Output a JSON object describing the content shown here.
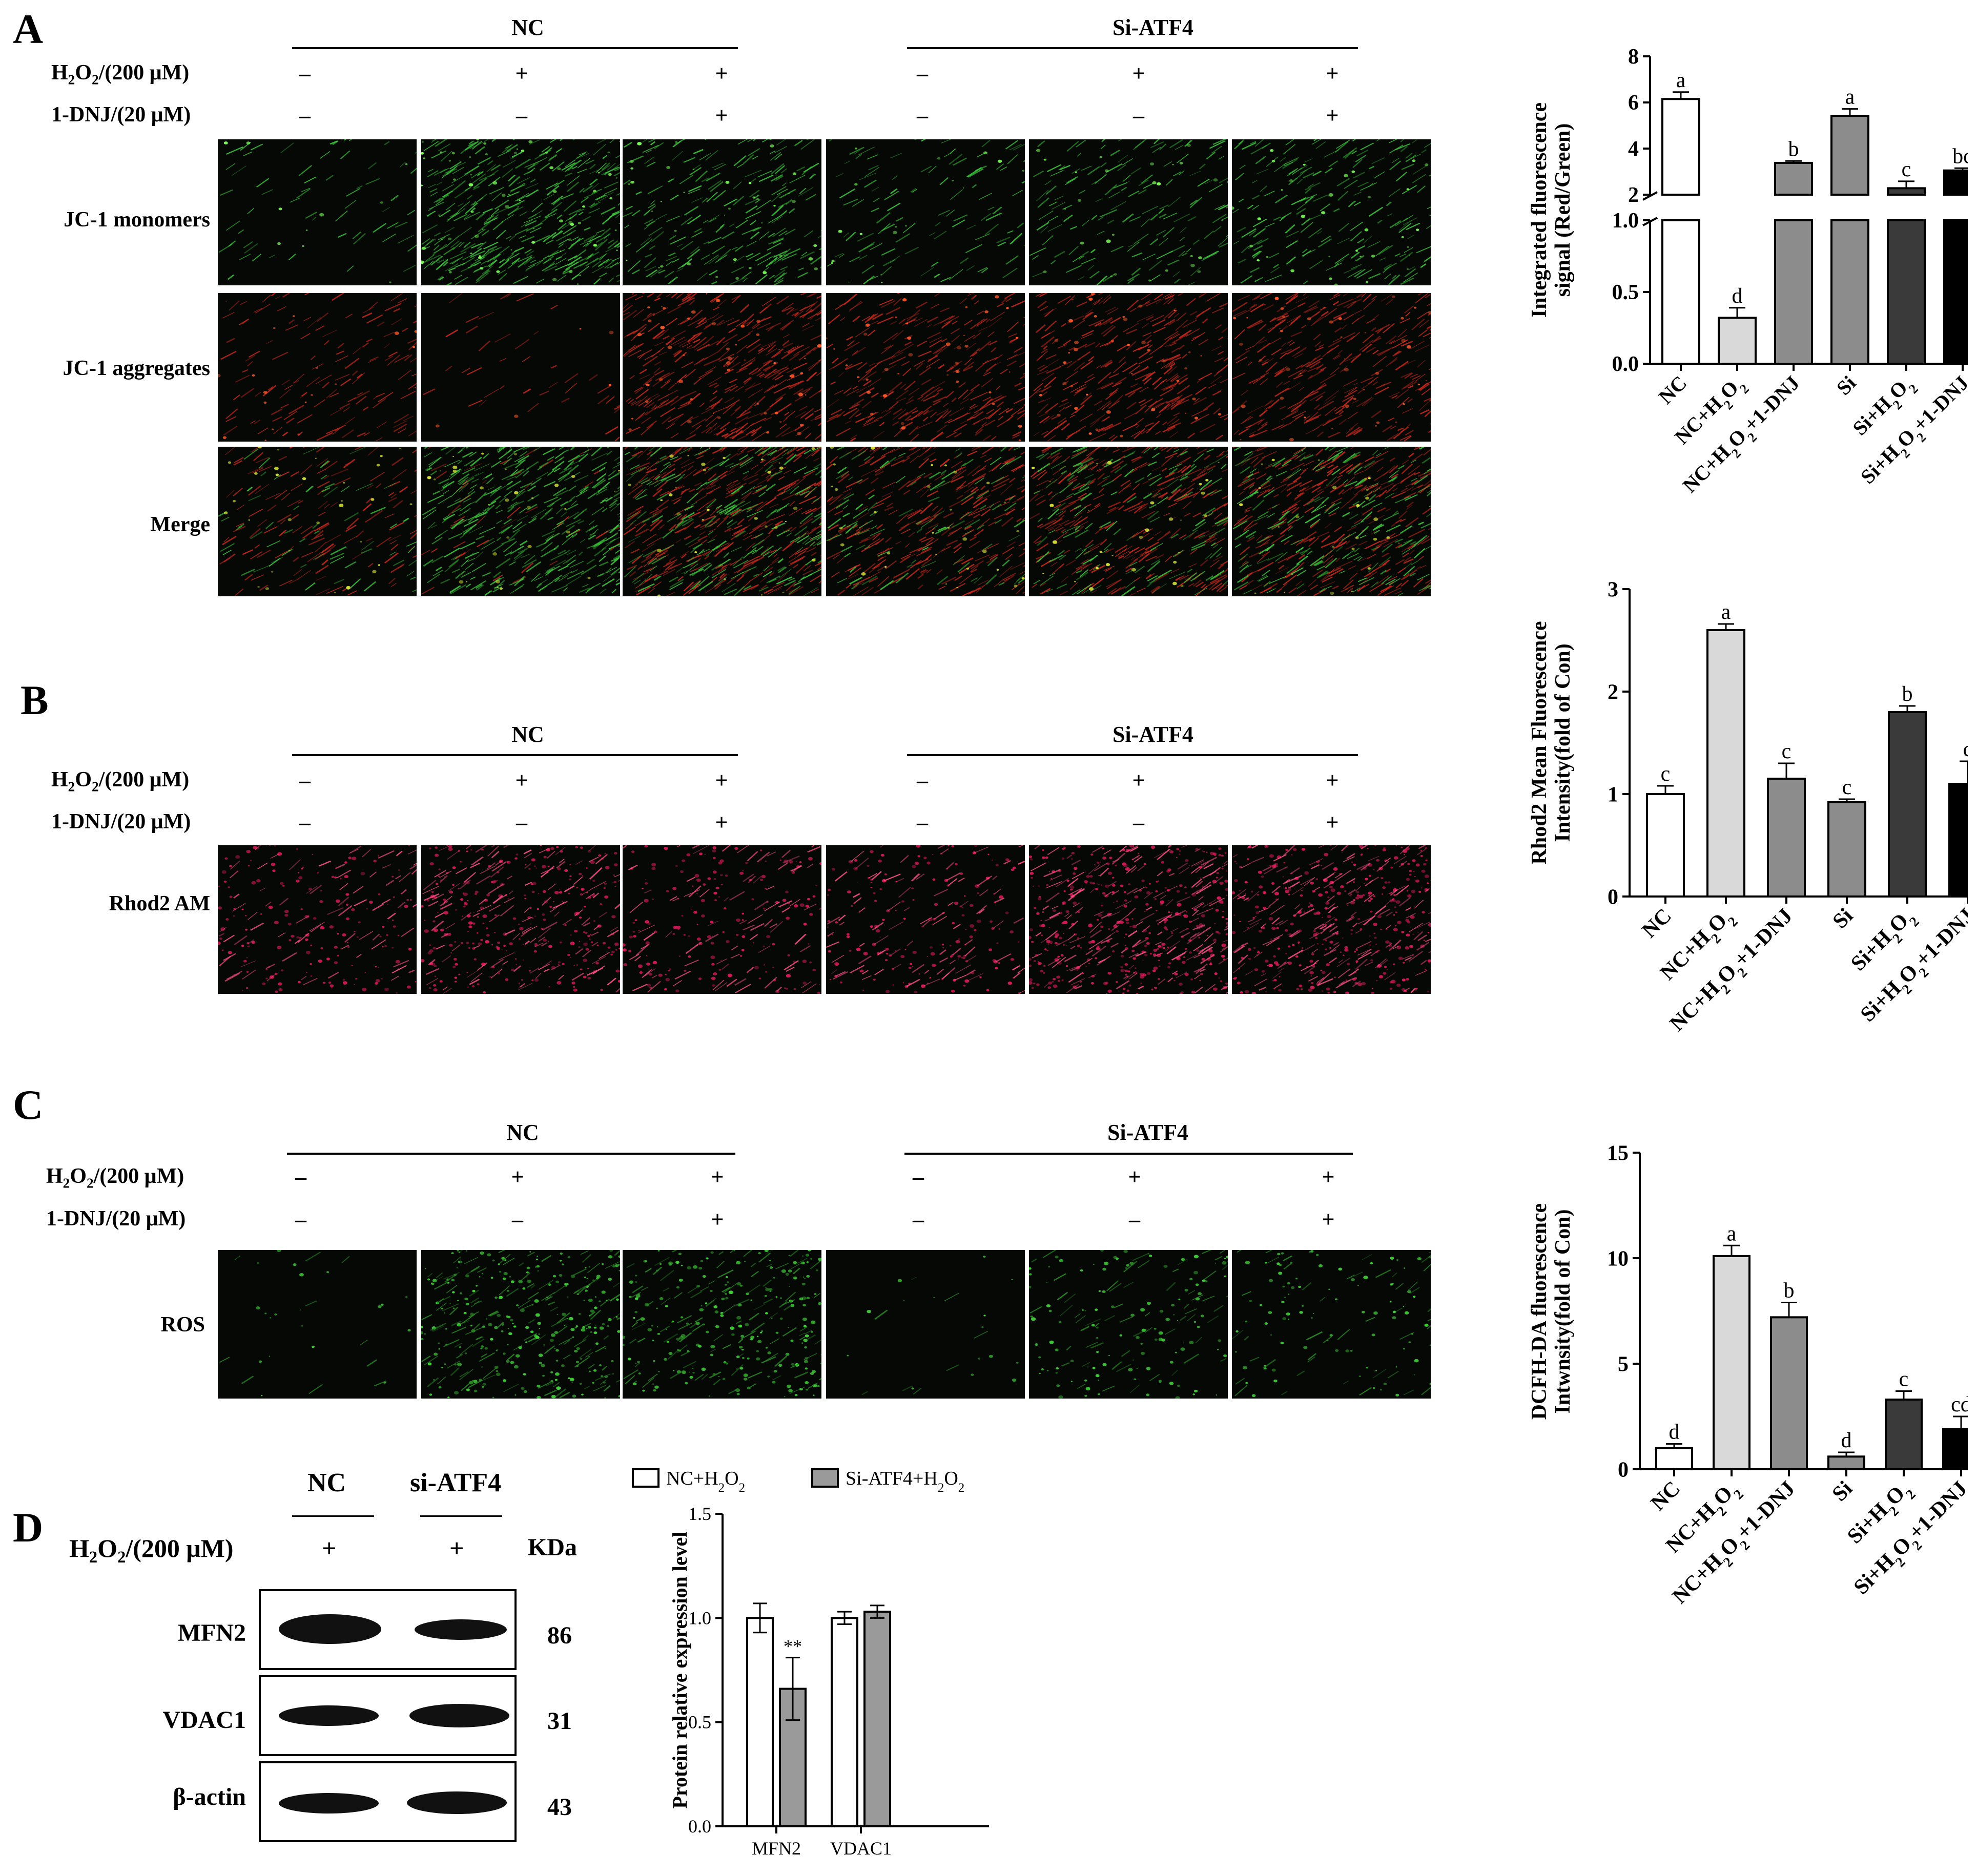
{
  "panels": {
    "A": {
      "letter": "A",
      "group_nc": "NC",
      "group_si": "Si-ATF4",
      "h2o2_label": "H2O2/(200 μM)",
      "dnj_label": "1-DNJ/(20 μM)",
      "h2o2_signs": [
        "–",
        "+",
        "+",
        "–",
        "+",
        "+"
      ],
      "dnj_signs": [
        "–",
        "–",
        "+",
        "–",
        "–",
        "+"
      ],
      "rows": [
        "JC-1 monomers",
        "JC-1 aggregates",
        "Merge"
      ]
    },
    "B": {
      "letter": "B",
      "group_nc": "NC",
      "group_si": "Si-ATF4",
      "h2o2_label": "H2O2/(200 μM)",
      "dnj_label": "1-DNJ/(20 μM)",
      "h2o2_signs": [
        "–",
        "+",
        "+",
        "–",
        "+",
        "+"
      ],
      "dnj_signs": [
        "–",
        "–",
        "+",
        "–",
        "–",
        "+"
      ],
      "rows": [
        "Rhod2 AM"
      ]
    },
    "C": {
      "letter": "C",
      "group_nc": "NC",
      "group_si": "Si-ATF4",
      "h2o2_label": "H2O2/(200 μM)",
      "dnj_label": "1-DNJ/(20 μM)",
      "h2o2_signs": [
        "–",
        "+",
        "+",
        "–",
        "+",
        "+"
      ],
      "dnj_signs": [
        "–",
        "–",
        "+",
        "–",
        "–",
        "+"
      ],
      "rows": [
        "ROS"
      ]
    },
    "D": {
      "letter": "D",
      "col_nc": "NC",
      "col_si": "si-ATF4",
      "h2o2_label": "H2O2/(200 μM)",
      "h2o2_signs": [
        "+",
        "+"
      ],
      "kda_header": "KDa",
      "bands": [
        {
          "name": "MFN2",
          "kda": "86"
        },
        {
          "name": "VDAC1",
          "kda": "31"
        },
        {
          "name": "β-actin",
          "kda": "43"
        }
      ]
    }
  },
  "colors": {
    "white_bar": "#ffffff",
    "light_gray": "#d9d9d9",
    "mid_gray": "#8c8c8c",
    "dark_gray": "#595959",
    "darker_gray": "#3a3a3a",
    "black_bar": "#000000"
  },
  "chart_data": [
    {
      "id": "A",
      "type": "bar",
      "ylabel": "Integrated fluorescence signal (Red/Green)",
      "categories": [
        "NC",
        "NC+H2O2",
        "NC+H2O2+1-DNJ",
        "Si",
        "Si+H2O2",
        "Si+H2O2+1-DNJ"
      ],
      "values": [
        6.15,
        0.32,
        3.38,
        5.42,
        2.28,
        3.05
      ],
      "errors": [
        0.3,
        0.07,
        0.08,
        0.3,
        0.3,
        0.1
      ],
      "letters": [
        "a",
        "d",
        "b",
        "a",
        "c",
        "bc"
      ],
      "axis_break": {
        "lower": [
          0,
          1.0
        ],
        "upper": [
          2,
          8
        ]
      },
      "lower_ticks": [
        "0.0",
        "0.5",
        "1.0"
      ],
      "upper_ticks": [
        "2",
        "4",
        "6",
        "8"
      ]
    },
    {
      "id": "B",
      "type": "bar",
      "ylabel": "Rhod2 Mean Fluorescence Intensity(fold of Con)",
      "categories": [
        "NC",
        "NC+H2O2",
        "NC+H2O2+1-DNJ",
        "Si",
        "Si+H2O2",
        "Si+H2O2+1-DNJ"
      ],
      "values": [
        1.0,
        2.6,
        1.15,
        0.92,
        1.8,
        1.1
      ],
      "errors": [
        0.08,
        0.06,
        0.15,
        0.03,
        0.06,
        0.22
      ],
      "letters": [
        "c",
        "a",
        "c",
        "c",
        "b",
        "c"
      ],
      "ylim": [
        0,
        3
      ],
      "ticks": [
        "0",
        "1",
        "2",
        "3"
      ]
    },
    {
      "id": "C",
      "type": "bar",
      "ylabel": "DCFH-DA fluorescence Intwnsity(fold of Con)",
      "categories": [
        "NC",
        "NC+H2O2",
        "NC+H2O2+1-DNJ",
        "Si",
        "Si+H2O2",
        "Si+H2O2+1-DNJ"
      ],
      "values": [
        1.0,
        10.1,
        7.2,
        0.6,
        3.3,
        1.9
      ],
      "errors": [
        0.2,
        0.5,
        0.7,
        0.2,
        0.4,
        0.6
      ],
      "letters": [
        "d",
        "a",
        "b",
        "d",
        "c",
        "cd"
      ],
      "ylim": [
        0,
        15
      ],
      "ticks": [
        "0",
        "5",
        "10",
        "15"
      ]
    },
    {
      "id": "D",
      "type": "bar",
      "ylabel": "Protein relative expression level",
      "categories": [
        "MFN2",
        "VDAC1"
      ],
      "series": [
        {
          "name": "NC+H2O2",
          "values": [
            1.0,
            1.0
          ],
          "errors": [
            0.07,
            0.03
          ]
        },
        {
          "name": "Si-ATF4+H2O2",
          "values": [
            0.66,
            1.03
          ],
          "errors": [
            0.15,
            0.03
          ]
        }
      ],
      "annotation": "**",
      "ylim": [
        0,
        1.5
      ],
      "ticks": [
        "0.0",
        "0.5",
        "1.0",
        "1.5"
      ]
    }
  ]
}
